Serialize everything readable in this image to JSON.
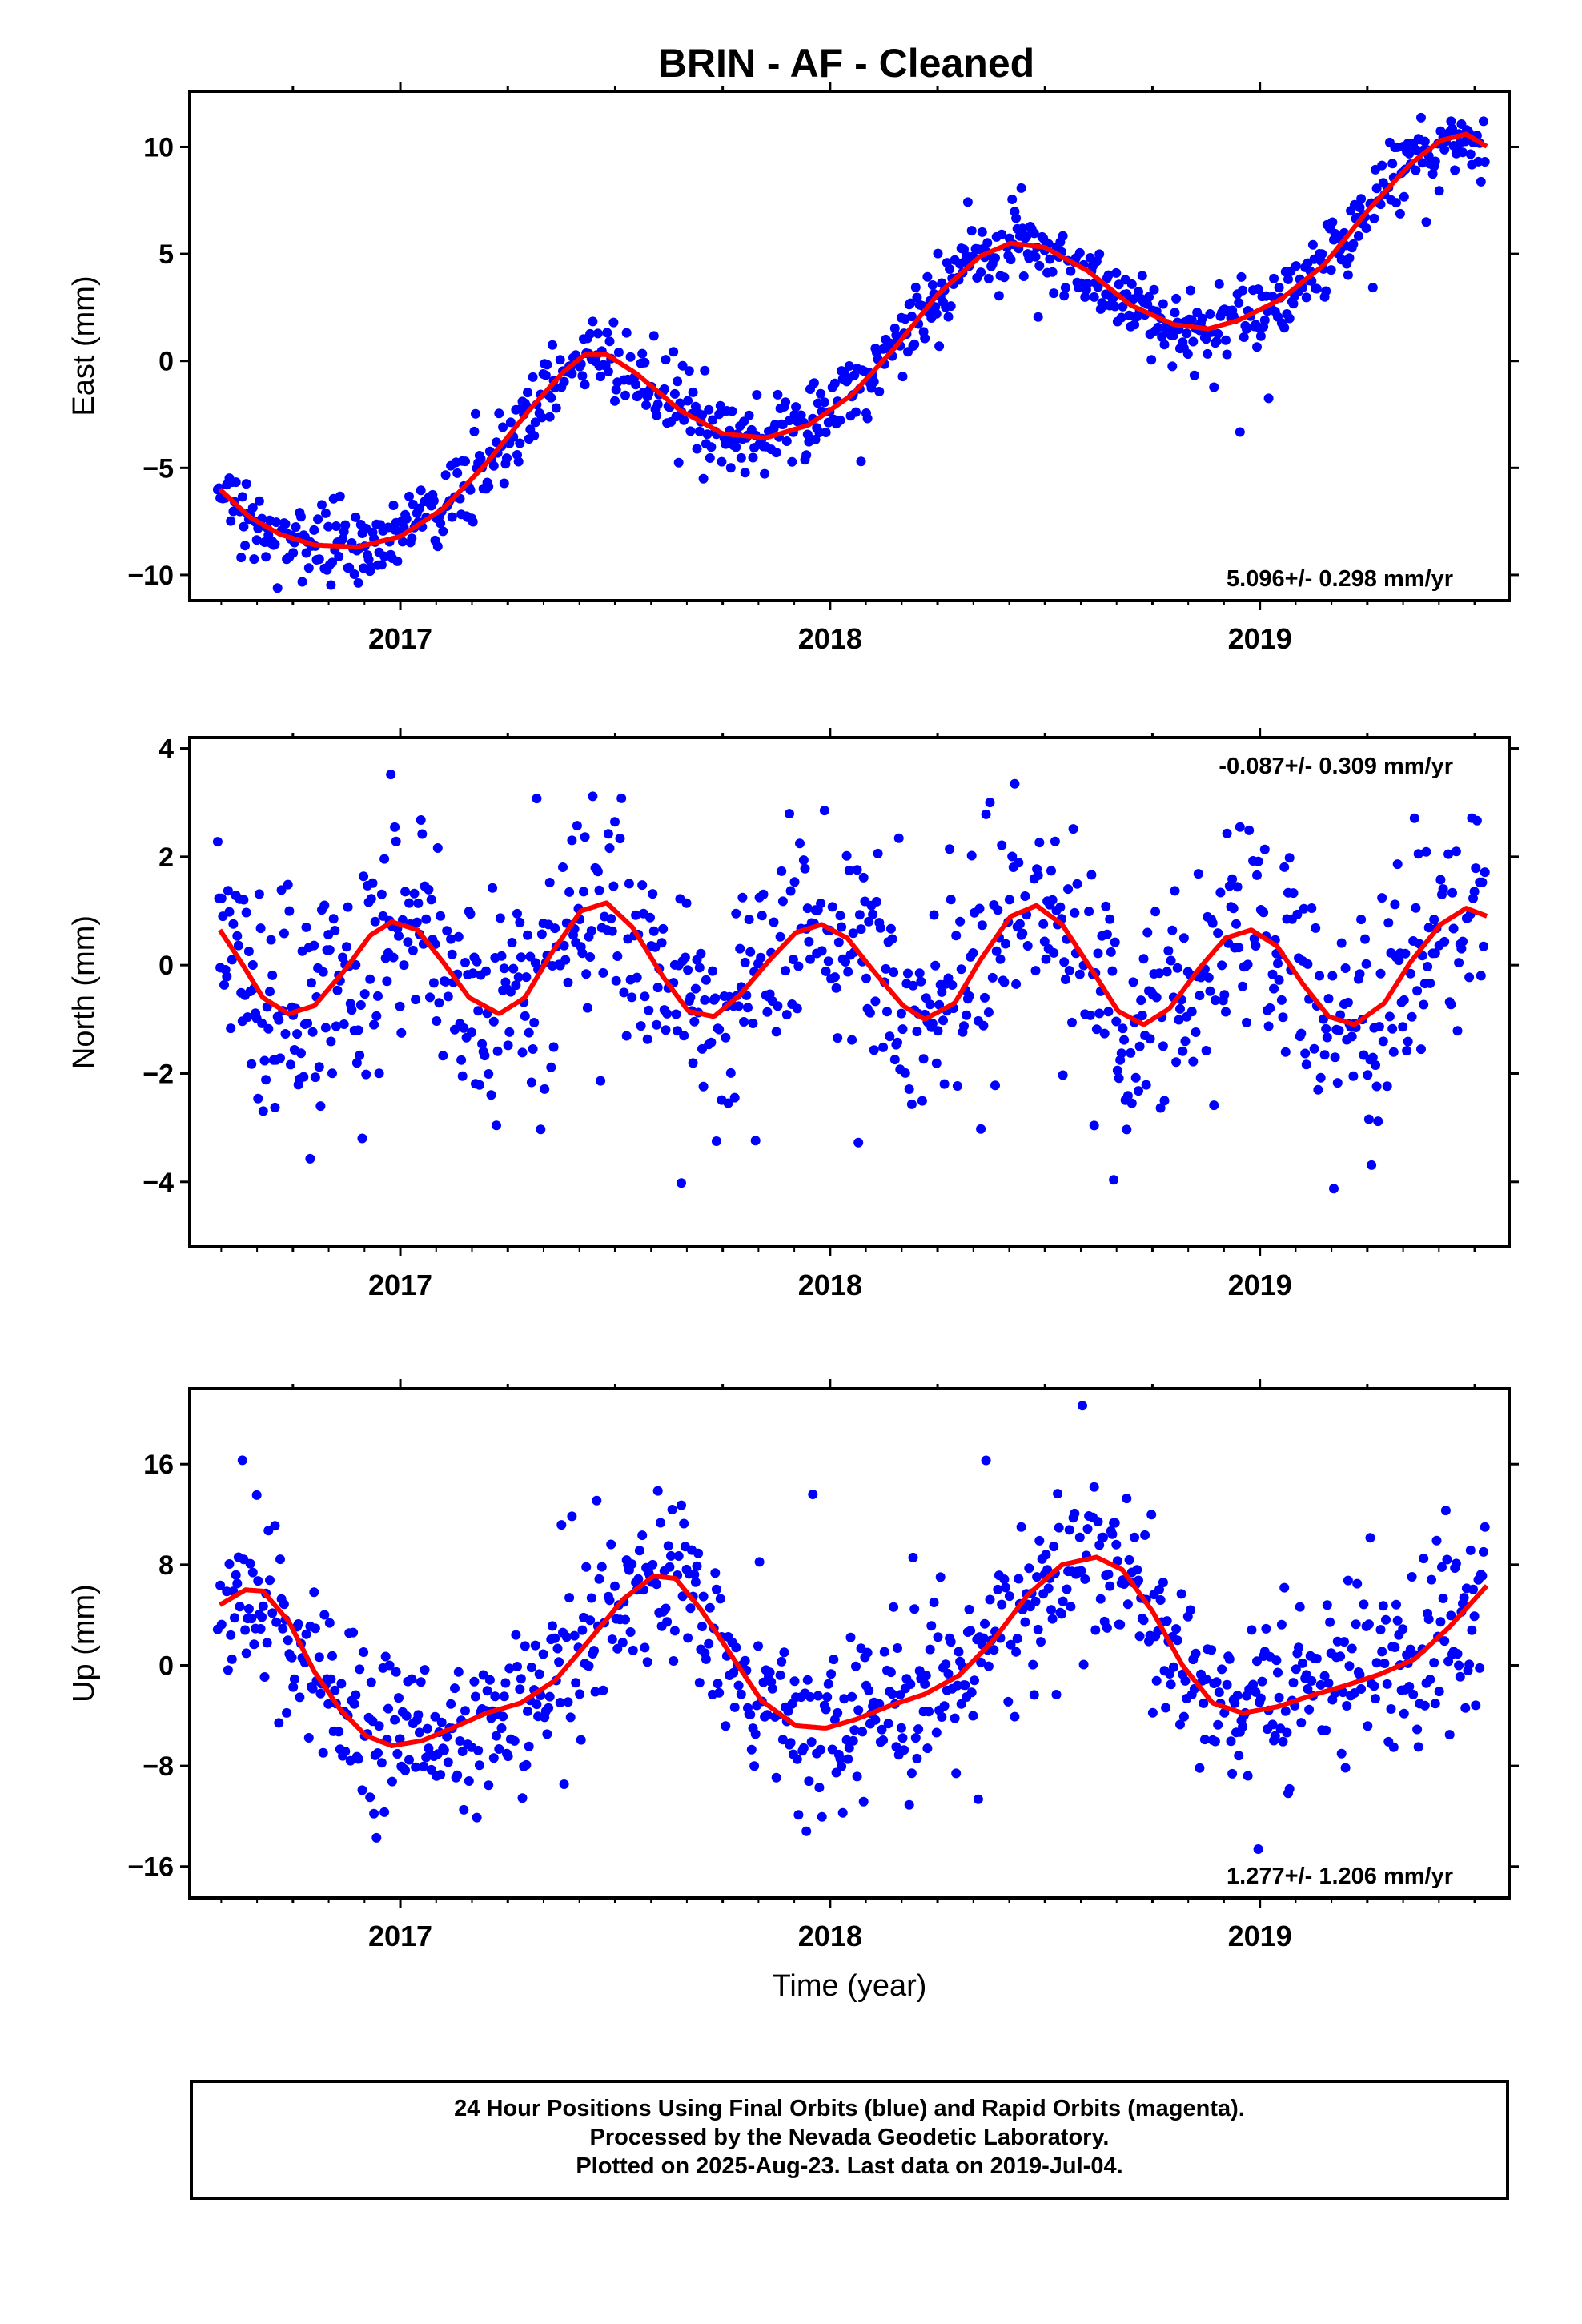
{
  "title": "BRIN  - AF - Cleaned",
  "footer": {
    "line1": "24 Hour Positions Using Final Orbits (blue) and Rapid Orbits (magenta).",
    "line2": "Processed by the Nevada Geodetic Laboratory.",
    "line3": "Plotted on 2025-Aug-23. Last data on 2019-Jul-04."
  },
  "colors": {
    "points": "#0000ff",
    "fit": "#ff0000",
    "frame": "#000000"
  },
  "chart_data": [
    {
      "type": "scatter",
      "ylabel": "East (mm)",
      "xlabel": "",
      "rate_label": "5.096+/- 0.298 mm/yr",
      "rate_position": "bottom-right",
      "xlim": [
        2016.51,
        2019.58
      ],
      "ylim": [
        -11.2,
        12.6
      ],
      "yticks": [
        10,
        5,
        0,
        -5,
        -10
      ],
      "ytick_labels": [
        "10",
        "5",
        "0",
        "−5",
        "−10"
      ],
      "xticks": [
        2017,
        2018,
        2019
      ],
      "xtick_labels": [
        "2017",
        "2018",
        "2019"
      ],
      "fit": [
        [
          2016.58,
          -6.0
        ],
        [
          2016.65,
          -7.3
        ],
        [
          2016.72,
          -8.1
        ],
        [
          2016.8,
          -8.6
        ],
        [
          2016.9,
          -8.7
        ],
        [
          2017.0,
          -8.2
        ],
        [
          2017.1,
          -6.9
        ],
        [
          2017.2,
          -4.8
        ],
        [
          2017.3,
          -2.3
        ],
        [
          2017.38,
          -0.5
        ],
        [
          2017.43,
          0.3
        ],
        [
          2017.48,
          0.3
        ],
        [
          2017.55,
          -0.6
        ],
        [
          2017.65,
          -2.3
        ],
        [
          2017.75,
          -3.4
        ],
        [
          2017.85,
          -3.6
        ],
        [
          2017.95,
          -3.0
        ],
        [
          2018.05,
          -1.6
        ],
        [
          2018.15,
          0.6
        ],
        [
          2018.25,
          3.1
        ],
        [
          2018.35,
          4.9
        ],
        [
          2018.42,
          5.5
        ],
        [
          2018.5,
          5.3
        ],
        [
          2018.6,
          4.2
        ],
        [
          2018.7,
          2.6
        ],
        [
          2018.8,
          1.7
        ],
        [
          2018.88,
          1.5
        ],
        [
          2018.95,
          1.9
        ],
        [
          2019.05,
          2.9
        ],
        [
          2019.15,
          4.5
        ],
        [
          2019.25,
          7.0
        ],
        [
          2019.35,
          9.2
        ],
        [
          2019.42,
          10.3
        ],
        [
          2019.48,
          10.6
        ],
        [
          2019.53,
          10.0
        ]
      ],
      "model": {
        "trend": [
          2018.0,
          -1.4,
          5.1
        ],
        "annual": [
          -1.1,
          -3.3
        ],
        "semiannual": [
          0.0,
          0.0
        ],
        "scatter": 0.9
      }
    },
    {
      "type": "scatter",
      "ylabel": "North (mm)",
      "xlabel": "",
      "rate_label": "-0.087+/- 0.309 mm/yr",
      "rate_position": "top-right",
      "xlim": [
        2016.51,
        2019.58
      ],
      "ylim": [
        -5.2,
        4.2
      ],
      "yticks": [
        4,
        2,
        0,
        -2,
        -4
      ],
      "ytick_labels": [
        "4",
        "2",
        "0",
        "−2",
        "−4"
      ],
      "xticks": [
        2017,
        2018,
        2019
      ],
      "xtick_labels": [
        "2017",
        "2018",
        "2019"
      ],
      "fit": [
        [
          2016.58,
          0.65
        ],
        [
          2016.63,
          0.05
        ],
        [
          2016.68,
          -0.6
        ],
        [
          2016.74,
          -0.9
        ],
        [
          2016.8,
          -0.75
        ],
        [
          2016.87,
          -0.1
        ],
        [
          2016.93,
          0.55
        ],
        [
          2016.98,
          0.8
        ],
        [
          2017.04,
          0.65
        ],
        [
          2017.1,
          0.05
        ],
        [
          2017.16,
          -0.6
        ],
        [
          2017.23,
          -0.9
        ],
        [
          2017.29,
          -0.6
        ],
        [
          2017.35,
          0.2
        ],
        [
          2017.42,
          1.0
        ],
        [
          2017.48,
          1.15
        ],
        [
          2017.54,
          0.7
        ],
        [
          2017.61,
          -0.2
        ],
        [
          2017.67,
          -0.85
        ],
        [
          2017.73,
          -0.95
        ],
        [
          2017.79,
          -0.55
        ],
        [
          2017.86,
          0.1
        ],
        [
          2017.92,
          0.6
        ],
        [
          2017.98,
          0.75
        ],
        [
          2018.04,
          0.5
        ],
        [
          2018.1,
          -0.1
        ],
        [
          2018.17,
          -0.75
        ],
        [
          2018.22,
          -1.0
        ],
        [
          2018.29,
          -0.7
        ],
        [
          2018.35,
          0.1
        ],
        [
          2018.42,
          0.9
        ],
        [
          2018.48,
          1.1
        ],
        [
          2018.54,
          0.75
        ],
        [
          2018.61,
          -0.1
        ],
        [
          2018.67,
          -0.85
        ],
        [
          2018.73,
          -1.1
        ],
        [
          2018.79,
          -0.8
        ],
        [
          2018.86,
          -0.05
        ],
        [
          2018.92,
          0.5
        ],
        [
          2018.98,
          0.65
        ],
        [
          2019.04,
          0.35
        ],
        [
          2019.1,
          -0.35
        ],
        [
          2019.16,
          -0.95
        ],
        [
          2019.22,
          -1.1
        ],
        [
          2019.29,
          -0.7
        ],
        [
          2019.35,
          0.05
        ],
        [
          2019.42,
          0.75
        ],
        [
          2019.48,
          1.05
        ],
        [
          2019.53,
          0.9
        ]
      ],
      "model": {
        "trend": [
          2018.0,
          -0.1,
          -0.087
        ],
        "annual": [
          0.0,
          0.0
        ],
        "semiannual": [
          0.4,
          0.8
        ],
        "scatter": 1.0
      }
    },
    {
      "type": "scatter",
      "ylabel": "Up (mm)",
      "xlabel": "Time (year)",
      "rate_label": "1.277+/- 1.206 mm/yr",
      "rate_position": "bottom-right",
      "xlim": [
        2016.51,
        2019.58
      ],
      "ylim": [
        -18.5,
        22.0
      ],
      "yticks": [
        16,
        8,
        0,
        -8,
        -16
      ],
      "ytick_labels": [
        "16",
        "8",
        "0",
        "−8",
        "−16"
      ],
      "xticks": [
        2017,
        2018,
        2019
      ],
      "xtick_labels": [
        "2017",
        "2018",
        "2019"
      ],
      "fit": [
        [
          2016.58,
          4.8
        ],
        [
          2016.64,
          6.0
        ],
        [
          2016.68,
          5.9
        ],
        [
          2016.74,
          3.5
        ],
        [
          2016.8,
          -0.5
        ],
        [
          2016.86,
          -3.5
        ],
        [
          2016.92,
          -5.6
        ],
        [
          2016.98,
          -6.4
        ],
        [
          2017.05,
          -6.0
        ],
        [
          2017.12,
          -5.0
        ],
        [
          2017.2,
          -3.8
        ],
        [
          2017.28,
          -3.0
        ],
        [
          2017.36,
          -1.2
        ],
        [
          2017.44,
          2.0
        ],
        [
          2017.52,
          5.3
        ],
        [
          2017.59,
          7.1
        ],
        [
          2017.64,
          6.9
        ],
        [
          2017.7,
          4.4
        ],
        [
          2017.77,
          0.8
        ],
        [
          2017.84,
          -2.8
        ],
        [
          2017.92,
          -4.8
        ],
        [
          2017.99,
          -5.0
        ],
        [
          2018.06,
          -4.3
        ],
        [
          2018.14,
          -3.2
        ],
        [
          2018.22,
          -2.3
        ],
        [
          2018.3,
          -0.8
        ],
        [
          2018.38,
          2.0
        ],
        [
          2018.46,
          5.6
        ],
        [
          2018.54,
          8.0
        ],
        [
          2018.62,
          8.6
        ],
        [
          2018.68,
          7.6
        ],
        [
          2018.75,
          4.3
        ],
        [
          2018.82,
          0.0
        ],
        [
          2018.89,
          -3.0
        ],
        [
          2018.96,
          -3.8
        ],
        [
          2019.04,
          -3.3
        ],
        [
          2019.12,
          -2.4
        ],
        [
          2019.2,
          -1.6
        ],
        [
          2019.28,
          -0.7
        ],
        [
          2019.36,
          0.5
        ],
        [
          2019.44,
          3.0
        ],
        [
          2019.53,
          6.4
        ]
      ],
      "model": {
        "trend": [
          2018.0,
          0.0,
          1.277
        ],
        "annual": [
          4.0,
          5.5
        ],
        "semiannual": [
          0.0,
          0.0
        ],
        "scatter": 3.4
      }
    }
  ]
}
